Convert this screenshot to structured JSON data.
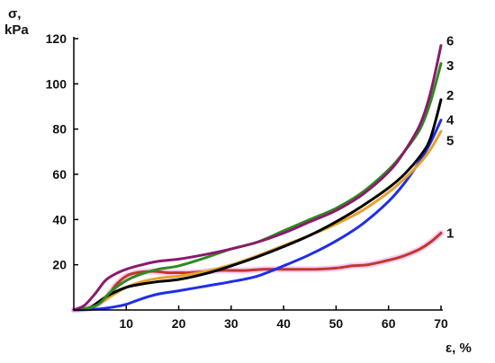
{
  "chart_data": {
    "type": "line",
    "xlabel": "ε, %",
    "ylabel_line1": "σ,",
    "ylabel_line2": "kPa",
    "xlim": [
      0,
      70
    ],
    "ylim": [
      0,
      120
    ],
    "x_ticks": [
      10,
      20,
      30,
      40,
      50,
      60,
      70
    ],
    "y_ticks": [
      20,
      40,
      60,
      80,
      100,
      120
    ],
    "grid": false,
    "series": [
      {
        "name": "1",
        "color": "#c0392b",
        "halo": "#f5a3f0",
        "points": [
          [
            0,
            0
          ],
          [
            3,
            1
          ],
          [
            6,
            5
          ],
          [
            8,
            11
          ],
          [
            10,
            15
          ],
          [
            12,
            16.5
          ],
          [
            14,
            17
          ],
          [
            16,
            17
          ],
          [
            18,
            16.5
          ],
          [
            20,
            16.5
          ],
          [
            22,
            16.5
          ],
          [
            25,
            17
          ],
          [
            28,
            17.5
          ],
          [
            30,
            17.5
          ],
          [
            33,
            17.5
          ],
          [
            36,
            18
          ],
          [
            40,
            18
          ],
          [
            43,
            18
          ],
          [
            46,
            18
          ],
          [
            50,
            18.5
          ],
          [
            53,
            19.5
          ],
          [
            56,
            20
          ],
          [
            60,
            22
          ],
          [
            63,
            24
          ],
          [
            66,
            27
          ],
          [
            68,
            30
          ],
          [
            70,
            34
          ]
        ]
      },
      {
        "name": "2",
        "color": "#000000",
        "points": [
          [
            0,
            0
          ],
          [
            3,
            1
          ],
          [
            5,
            4
          ],
          [
            7,
            7
          ],
          [
            10,
            10
          ],
          [
            13,
            11.5
          ],
          [
            16,
            12.5
          ],
          [
            20,
            13.5
          ],
          [
            25,
            16
          ],
          [
            30,
            19.5
          ],
          [
            35,
            23.5
          ],
          [
            40,
            28
          ],
          [
            45,
            33
          ],
          [
            50,
            39
          ],
          [
            55,
            46
          ],
          [
            60,
            54
          ],
          [
            63,
            60
          ],
          [
            66,
            68
          ],
          [
            68,
            76
          ],
          [
            70,
            93
          ]
        ]
      },
      {
        "name": "3",
        "color": "#2e8b1f",
        "points": [
          [
            0,
            0
          ],
          [
            3,
            1
          ],
          [
            5,
            3
          ],
          [
            7,
            8
          ],
          [
            10,
            13
          ],
          [
            13,
            16
          ],
          [
            16,
            18
          ],
          [
            20,
            19.5
          ],
          [
            25,
            23
          ],
          [
            30,
            27
          ],
          [
            35,
            30
          ],
          [
            40,
            35
          ],
          [
            45,
            40
          ],
          [
            50,
            45
          ],
          [
            55,
            52
          ],
          [
            60,
            62
          ],
          [
            63,
            70
          ],
          [
            66,
            80
          ],
          [
            68,
            92
          ],
          [
            70,
            109
          ]
        ]
      },
      {
        "name": "4",
        "color": "#1f2ee8",
        "points": [
          [
            0,
            0
          ],
          [
            5,
            0.5
          ],
          [
            8,
            1.5
          ],
          [
            10,
            2.5
          ],
          [
            13,
            5
          ],
          [
            16,
            7
          ],
          [
            20,
            8.5
          ],
          [
            25,
            10.5
          ],
          [
            30,
            12.5
          ],
          [
            35,
            15
          ],
          [
            40,
            19.5
          ],
          [
            45,
            24.5
          ],
          [
            50,
            30.5
          ],
          [
            55,
            38
          ],
          [
            60,
            48
          ],
          [
            63,
            56
          ],
          [
            66,
            66
          ],
          [
            68,
            74
          ],
          [
            70,
            84
          ]
        ]
      },
      {
        "name": "5",
        "color": "#e6a12a",
        "points": [
          [
            0,
            0
          ],
          [
            3,
            1
          ],
          [
            5,
            3
          ],
          [
            7,
            6
          ],
          [
            10,
            10
          ],
          [
            13,
            12.5
          ],
          [
            16,
            14
          ],
          [
            20,
            15
          ],
          [
            25,
            17
          ],
          [
            30,
            20
          ],
          [
            35,
            24
          ],
          [
            40,
            28.5
          ],
          [
            45,
            33
          ],
          [
            50,
            38
          ],
          [
            55,
            44
          ],
          [
            60,
            52
          ],
          [
            63,
            58
          ],
          [
            66,
            65
          ],
          [
            68,
            71
          ],
          [
            70,
            79
          ]
        ]
      },
      {
        "name": "6",
        "color": "#8b1a6b",
        "points": [
          [
            0,
            0
          ],
          [
            2,
            2
          ],
          [
            4,
            7
          ],
          [
            6,
            13
          ],
          [
            8,
            16
          ],
          [
            10,
            18
          ],
          [
            13,
            20
          ],
          [
            16,
            21.5
          ],
          [
            20,
            22.5
          ],
          [
            25,
            24.5
          ],
          [
            30,
            27
          ],
          [
            35,
            30
          ],
          [
            40,
            34
          ],
          [
            45,
            39
          ],
          [
            50,
            44
          ],
          [
            55,
            51
          ],
          [
            60,
            61
          ],
          [
            63,
            70
          ],
          [
            66,
            82
          ],
          [
            68,
            96
          ],
          [
            70,
            117
          ]
        ]
      }
    ],
    "series_label_values": [
      {
        "name": "1",
        "x": 70,
        "y": 34
      },
      {
        "name": "2",
        "x": 70,
        "y": 95
      },
      {
        "name": "3",
        "x": 70,
        "y": 108
      },
      {
        "name": "4",
        "x": 70,
        "y": 84
      },
      {
        "name": "5",
        "x": 70,
        "y": 75
      },
      {
        "name": "6",
        "x": 70,
        "y": 119
      }
    ]
  }
}
